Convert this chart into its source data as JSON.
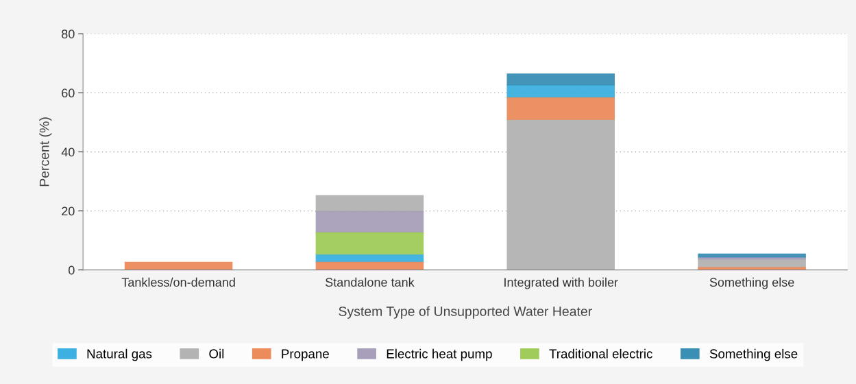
{
  "chart_data": {
    "type": "bar",
    "xlabel": "System Type of Unsupported Water Heater",
    "ylabel": "Percent (%)",
    "categories": [
      "Tankless/on-demand",
      "Standalone tank",
      "Integrated with boiler",
      "Something else"
    ],
    "series": [
      {
        "name": "Natural gas",
        "color": "#3cb0e0",
        "values": [
          null,
          2.8,
          4.4,
          null
        ],
        "base": [
          null,
          2.6,
          58.3,
          null
        ]
      },
      {
        "name": "Oil",
        "color": "#b3b3b3",
        "values": [
          null,
          5.4,
          51.0,
          2.9
        ],
        "base": [
          null,
          19.8,
          0,
          0.8
        ]
      },
      {
        "name": "Propane",
        "color": "#ec8c5c",
        "values": [
          2.6,
          2.6,
          7.3,
          0.8
        ],
        "base": [
          0,
          0,
          51.0,
          0
        ]
      },
      {
        "name": "Electric heat pump",
        "color": "#a89fba",
        "values": [
          null,
          7.2,
          null,
          0.7
        ],
        "base": [
          null,
          12.6,
          null,
          3.7
        ]
      },
      {
        "name": "Traditional electric",
        "color": "#a0cc5a",
        "values": [
          null,
          7.2,
          null,
          null
        ],
        "base": [
          null,
          5.4,
          null,
          null
        ]
      },
      {
        "name": "Something else",
        "color": "#3a8fb4",
        "values": [
          null,
          null,
          3.7,
          1.0
        ],
        "base": [
          null,
          null,
          62.7,
          4.4
        ]
      }
    ],
    "ylim": [
      0,
      80
    ],
    "yticks": [
      0,
      20,
      40,
      60,
      80
    ],
    "grid": "y",
    "legend": "bottom"
  }
}
